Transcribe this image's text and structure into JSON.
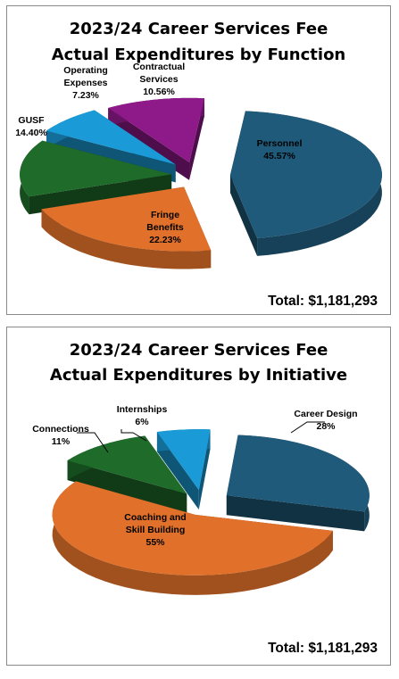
{
  "chart_data": [
    {
      "type": "pie",
      "title_line1": "2023/24 Career Services Fee",
      "title_line2": "Actual Expenditures by Function",
      "total_label": "Total:",
      "total_value": "$1,181,293",
      "slices": [
        {
          "name": "Personnel",
          "value": 45.57,
          "value_label": "45.57%",
          "color": "#1f5a7a"
        },
        {
          "name": "Fringe Benefits",
          "value": 22.23,
          "value_label": "22.23%",
          "color": "#e0702a"
        },
        {
          "name": "GUSF",
          "value": 14.4,
          "value_label": "14.40%",
          "color": "#1e6b2a"
        },
        {
          "name": "Operating Expenses",
          "value": 7.23,
          "value_label": "7.23%",
          "color": "#1a9ad6"
        },
        {
          "name": "Contractual Services",
          "value": 10.56,
          "value_label": "10.56%",
          "color": "#8e1a8a"
        }
      ]
    },
    {
      "type": "pie",
      "title_line1": "2023/24 Career Services Fee",
      "title_line2": "Actual Expenditures by Initiative",
      "total_label": "Total:",
      "total_value": "$1,181,293",
      "slices": [
        {
          "name": "Career Design",
          "value": 28,
          "value_label": "28%",
          "color": "#1f5a7a"
        },
        {
          "name": "Coaching and Skill Building",
          "value": 55,
          "value_label": "55%",
          "color": "#e0702a"
        },
        {
          "name": "Connections",
          "value": 11,
          "value_label": "11%",
          "color": "#1e6b2a"
        },
        {
          "name": "Internships",
          "value": 6,
          "value_label": "6%",
          "color": "#1a9ad6"
        }
      ]
    }
  ]
}
